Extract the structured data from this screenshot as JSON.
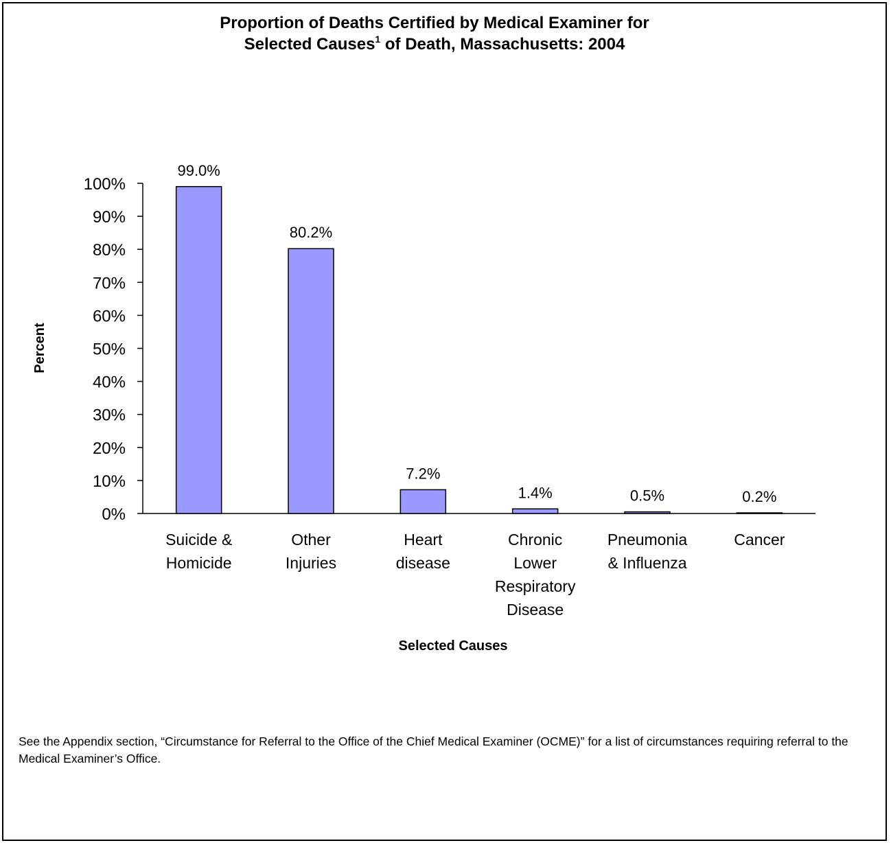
{
  "title": {
    "line1": "Proportion of Deaths Certified by Medical Examiner for",
    "line2_pre": "Selected Causes",
    "line2_sup": "1",
    "line2_post": " of Death, Massachusetts: 2004"
  },
  "chart_data": {
    "type": "bar",
    "categories": [
      [
        "Suicide &",
        "Homicide"
      ],
      [
        "Other",
        "Injuries"
      ],
      [
        "Heart",
        "disease"
      ],
      [
        "Chronic",
        "Lower",
        "Respiratory",
        "Disease"
      ],
      [
        "Pneumonia",
        "& Influenza"
      ],
      [
        "Cancer"
      ]
    ],
    "values": [
      99.0,
      80.2,
      7.2,
      1.4,
      0.5,
      0.2
    ],
    "data_labels": [
      "99.0%",
      "80.2%",
      "7.2%",
      "1.4%",
      "0.5%",
      "0.2%"
    ],
    "xlabel": "Selected Causes",
    "ylabel": "Percent",
    "ylim": [
      0,
      100
    ],
    "yticks": [
      0,
      10,
      20,
      30,
      40,
      50,
      60,
      70,
      80,
      90,
      100
    ],
    "ytick_labels": [
      "0%",
      "10%",
      "20%",
      "30%",
      "40%",
      "50%",
      "60%",
      "70%",
      "80%",
      "90%",
      "100%"
    ],
    "grid": false,
    "legend": "none",
    "bar_color": "#9999ff",
    "bar_edge_color": "#000000"
  },
  "note": "See the Appendix section, “Circumstance for Referral to the Office of the Chief Medical Examiner (OCME)” for a list of circumstances requiring referral to the Medical Examiner’s Office."
}
